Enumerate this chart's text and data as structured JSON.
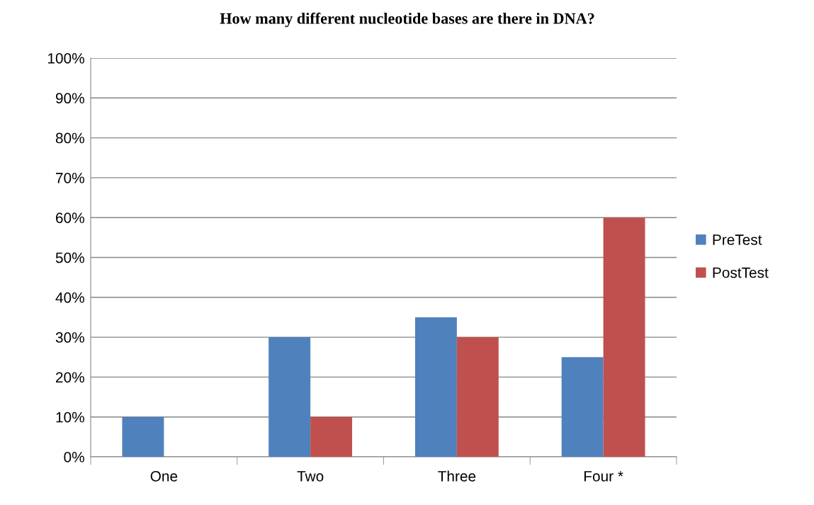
{
  "chart_data": {
    "type": "bar",
    "title": "How many different nucleotide bases are there in DNA?",
    "categories": [
      "One",
      "Two",
      "Three",
      "Four *"
    ],
    "series": [
      {
        "name": "PreTest",
        "color": "#4f81bd",
        "values": [
          10,
          30,
          35,
          25
        ]
      },
      {
        "name": "PostTest",
        "color": "#c0504d",
        "values": [
          0,
          10,
          30,
          60
        ]
      }
    ],
    "ylim": [
      0,
      100
    ],
    "yticks": [
      {
        "value": 0,
        "label": "0%"
      },
      {
        "value": 10,
        "label": "10%"
      },
      {
        "value": 20,
        "label": "20%"
      },
      {
        "value": 30,
        "label": "30%"
      },
      {
        "value": 40,
        "label": "40%"
      },
      {
        "value": 50,
        "label": "50%"
      },
      {
        "value": 60,
        "label": "60%"
      },
      {
        "value": 70,
        "label": "70%"
      },
      {
        "value": 80,
        "label": "80%"
      },
      {
        "value": 90,
        "label": "90%"
      },
      {
        "value": 100,
        "label": "100%"
      }
    ],
    "grid": "y",
    "legend": "right"
  }
}
